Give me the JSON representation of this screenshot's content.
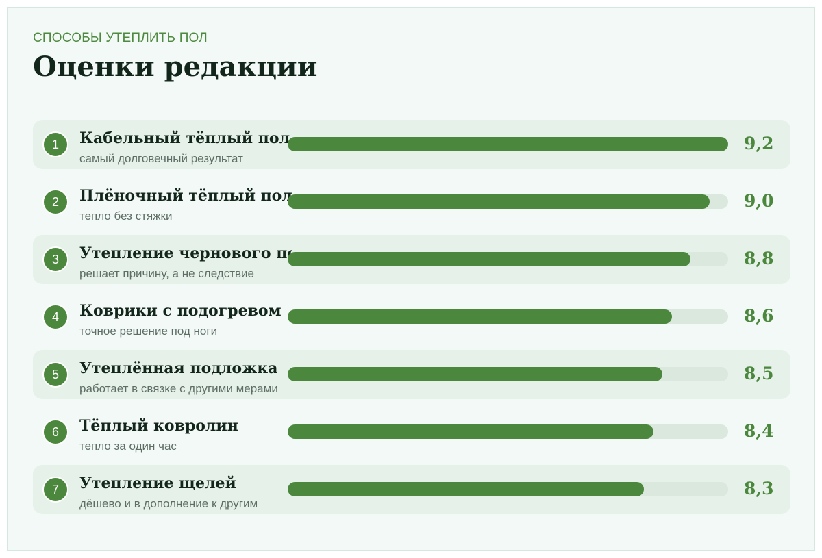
{
  "header": {
    "eyebrow": "СПОСОБЫ УТЕПЛИТЬ ПОЛ",
    "title": "Оценки редакции"
  },
  "colors": {
    "accent": "#4b873c",
    "track": "#dae8dd",
    "card_background": "#f3f9f6",
    "row_shade": "#e5f1e9",
    "title_text": "#13261c"
  },
  "chart_data": {
    "type": "bar",
    "orientation": "horizontal",
    "title": "Оценки редакции",
    "subtitle": "СПОСОБЫ УТЕПЛИТЬ ПОЛ",
    "xlim": [
      0,
      10
    ],
    "grid": false,
    "items": [
      {
        "rank": "1",
        "name": "Кабельный тёплый пол",
        "desc": "самый долговечный результат",
        "value": 9.2,
        "label": "9,2"
      },
      {
        "rank": "2",
        "name": "Плёночный тёплый пол",
        "desc": "тепло без стяжки",
        "value": 9.0,
        "label": "9,0"
      },
      {
        "rank": "3",
        "name": "Утепление чернового пола",
        "desc": "решает причину, а не следствие",
        "value": 8.8,
        "label": "8,8"
      },
      {
        "rank": "4",
        "name": "Коврики с подогревом",
        "desc": "точное решение под ноги",
        "value": 8.6,
        "label": "8,6"
      },
      {
        "rank": "5",
        "name": "Утеплённая подложка",
        "desc": "работает в связке с другими мерами",
        "value": 8.5,
        "label": "8,5"
      },
      {
        "rank": "6",
        "name": "Тёплый ковролин",
        "desc": "тепло за один час",
        "value": 8.4,
        "label": "8,4"
      },
      {
        "rank": "7",
        "name": "Утепление щелей",
        "desc": "дёшево и в дополнение к другим",
        "value": 8.3,
        "label": "8,3"
      }
    ]
  }
}
